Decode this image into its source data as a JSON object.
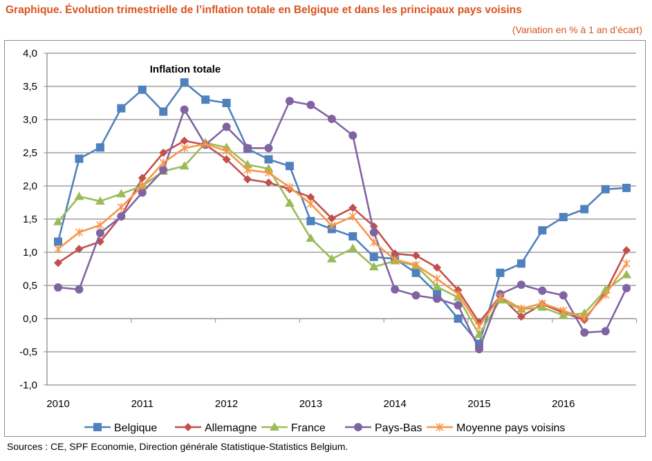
{
  "header": {
    "title": "Graphique. Évolution trimestrielle de l’inflation totale en Belgique et dans les principaux pays voisins",
    "subtitle": "(Variation en % à 1 an d’écart)"
  },
  "footer": {
    "sources": "Sources : CE, SPF Economie, Direction générale Statistique-Statistics Belgium."
  },
  "chart_data": {
    "type": "line",
    "title": "Inflation totale",
    "xlabel": "",
    "ylabel": "",
    "ylim": [
      -1.0,
      4.0
    ],
    "ytick_labels": [
      "4,0",
      "3,5",
      "3,0",
      "2,5",
      "2,0",
      "1,5",
      "1,0",
      "0,5",
      "0,0",
      "-0,5",
      "-1,0"
    ],
    "ytick_values": [
      4,
      3.5,
      3,
      2.5,
      2,
      1.5,
      1,
      0.5,
      0,
      -0.5,
      -1
    ],
    "xtick_labels": [
      "2010",
      "2011",
      "2012",
      "2013",
      "2014",
      "2015",
      "2016"
    ],
    "x_quarters": 28,
    "grid": true,
    "legend": "bottom",
    "series": [
      {
        "name": "Belgique",
        "color": "#4f81bd",
        "marker": "square",
        "values": [
          1.16,
          2.41,
          2.58,
          3.17,
          3.45,
          3.12,
          3.56,
          3.3,
          3.25,
          2.56,
          2.4,
          2.3,
          1.47,
          1.35,
          1.24,
          0.93,
          0.9,
          0.69,
          0.38,
          0.0,
          -0.38,
          0.69,
          0.83,
          1.33,
          1.53,
          1.65,
          1.95,
          1.97
        ]
      },
      {
        "name": "Allemagne",
        "color": "#c0504d",
        "marker": "diamond",
        "values": [
          0.84,
          1.05,
          1.16,
          1.55,
          2.12,
          2.5,
          2.68,
          2.62,
          2.4,
          2.1,
          2.05,
          1.95,
          1.83,
          1.51,
          1.67,
          1.39,
          0.98,
          0.95,
          0.77,
          0.43,
          -0.06,
          0.34,
          0.03,
          0.22,
          0.09,
          -0.02,
          0.4,
          1.03
        ]
      },
      {
        "name": "France",
        "color": "#9bbb59",
        "marker": "triangle",
        "values": [
          1.46,
          1.84,
          1.77,
          1.88,
          2.0,
          2.22,
          2.3,
          2.65,
          2.58,
          2.32,
          2.26,
          1.74,
          1.21,
          0.9,
          1.06,
          0.78,
          0.87,
          0.8,
          0.48,
          0.32,
          -0.24,
          0.28,
          0.14,
          0.17,
          0.05,
          0.08,
          0.43,
          0.66
        ]
      },
      {
        "name": "Pays-Bas",
        "color": "#8064a2",
        "marker": "circle",
        "values": [
          0.47,
          0.44,
          1.29,
          1.54,
          1.9,
          2.24,
          3.15,
          2.62,
          2.89,
          2.57,
          2.57,
          3.28,
          3.22,
          3.01,
          2.76,
          1.3,
          0.44,
          0.35,
          0.3,
          0.2,
          -0.46,
          0.37,
          0.51,
          0.42,
          0.35,
          -0.21,
          -0.19,
          0.46
        ]
      },
      {
        "name": "Moyenne pays voisins",
        "color": "#f79646",
        "marker": "star",
        "values": [
          1.05,
          1.3,
          1.41,
          1.68,
          2.0,
          2.35,
          2.57,
          2.63,
          2.53,
          2.24,
          2.2,
          1.98,
          1.73,
          1.4,
          1.54,
          1.15,
          0.89,
          0.81,
          0.6,
          0.37,
          -0.12,
          0.33,
          0.15,
          0.23,
          0.12,
          0.01,
          0.36,
          0.83
        ]
      }
    ]
  }
}
